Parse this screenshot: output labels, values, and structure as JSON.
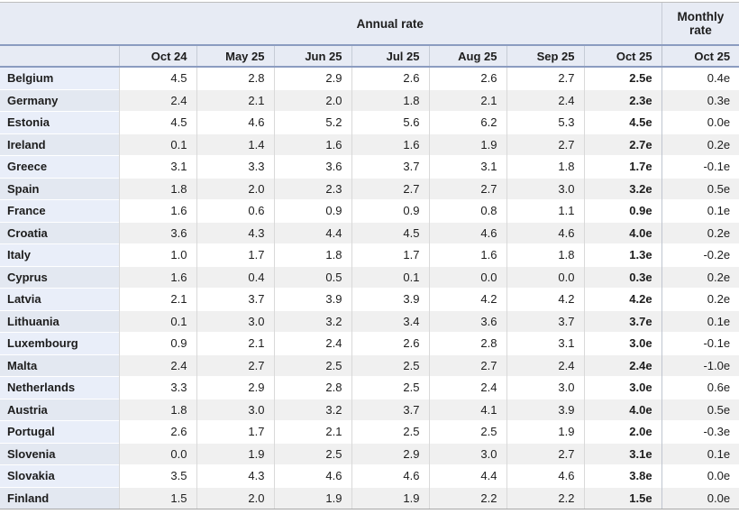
{
  "colors": {
    "header_bg": "#e7ebf4",
    "header_rule_blue": "#8b9cc0",
    "top_border_gray": "#bdbdbd",
    "bottom_border_gray": "#a6a6a6",
    "row_even_bg": "#f0f0f0",
    "row_odd_bg": "#ffffff",
    "country_col_odd_bg": "#e9eef9",
    "country_col_even_bg": "#e3e8f1",
    "grid_line": "#d9d9d9",
    "text": "#1d1d1d"
  },
  "chart_data": {
    "type": "table",
    "annual_group_label": "Annual rate",
    "monthly_group_label": "Monthly rate",
    "annual_columns": [
      "Oct 24",
      "May 25",
      "Jun 25",
      "Jul 25",
      "Aug 25",
      "Sep 25",
      "Oct 25"
    ],
    "monthly_column": "Oct 25",
    "estimate_flag_note": "values suffixed with e are estimates (shown bold in Oct 25 annual column)",
    "rows": [
      {
        "country": "Belgium",
        "annual": [
          "4.5",
          "2.8",
          "2.9",
          "2.6",
          "2.6",
          "2.7",
          "2.5e"
        ],
        "monthly": "0.4e"
      },
      {
        "country": "Germany",
        "annual": [
          "2.4",
          "2.1",
          "2.0",
          "1.8",
          "2.1",
          "2.4",
          "2.3e"
        ],
        "monthly": "0.3e"
      },
      {
        "country": "Estonia",
        "annual": [
          "4.5",
          "4.6",
          "5.2",
          "5.6",
          "6.2",
          "5.3",
          "4.5e"
        ],
        "monthly": "0.0e"
      },
      {
        "country": "Ireland",
        "annual": [
          "0.1",
          "1.4",
          "1.6",
          "1.6",
          "1.9",
          "2.7",
          "2.7e"
        ],
        "monthly": "0.2e"
      },
      {
        "country": "Greece",
        "annual": [
          "3.1",
          "3.3",
          "3.6",
          "3.7",
          "3.1",
          "1.8",
          "1.7e"
        ],
        "monthly": "-0.1e"
      },
      {
        "country": "Spain",
        "annual": [
          "1.8",
          "2.0",
          "2.3",
          "2.7",
          "2.7",
          "3.0",
          "3.2e"
        ],
        "monthly": "0.5e"
      },
      {
        "country": "France",
        "annual": [
          "1.6",
          "0.6",
          "0.9",
          "0.9",
          "0.8",
          "1.1",
          "0.9e"
        ],
        "monthly": "0.1e"
      },
      {
        "country": "Croatia",
        "annual": [
          "3.6",
          "4.3",
          "4.4",
          "4.5",
          "4.6",
          "4.6",
          "4.0e"
        ],
        "monthly": "0.2e"
      },
      {
        "country": "Italy",
        "annual": [
          "1.0",
          "1.7",
          "1.8",
          "1.7",
          "1.6",
          "1.8",
          "1.3e"
        ],
        "monthly": "-0.2e"
      },
      {
        "country": "Cyprus",
        "annual": [
          "1.6",
          "0.4",
          "0.5",
          "0.1",
          "0.0",
          "0.0",
          "0.3e"
        ],
        "monthly": "0.2e"
      },
      {
        "country": "Latvia",
        "annual": [
          "2.1",
          "3.7",
          "3.9",
          "3.9",
          "4.2",
          "4.2",
          "4.2e"
        ],
        "monthly": "0.2e"
      },
      {
        "country": "Lithuania",
        "annual": [
          "0.1",
          "3.0",
          "3.2",
          "3.4",
          "3.6",
          "3.7",
          "3.7e"
        ],
        "monthly": "0.1e"
      },
      {
        "country": "Luxembourg",
        "annual": [
          "0.9",
          "2.1",
          "2.4",
          "2.6",
          "2.8",
          "3.1",
          "3.0e"
        ],
        "monthly": "-0.1e"
      },
      {
        "country": "Malta",
        "annual": [
          "2.4",
          "2.7",
          "2.5",
          "2.5",
          "2.7",
          "2.4",
          "2.4e"
        ],
        "monthly": "-1.0e"
      },
      {
        "country": "Netherlands",
        "annual": [
          "3.3",
          "2.9",
          "2.8",
          "2.5",
          "2.4",
          "3.0",
          "3.0e"
        ],
        "monthly": "0.6e"
      },
      {
        "country": "Austria",
        "annual": [
          "1.8",
          "3.0",
          "3.2",
          "3.7",
          "4.1",
          "3.9",
          "4.0e"
        ],
        "monthly": "0.5e"
      },
      {
        "country": "Portugal",
        "annual": [
          "2.6",
          "1.7",
          "2.1",
          "2.5",
          "2.5",
          "1.9",
          "2.0e"
        ],
        "monthly": "-0.3e"
      },
      {
        "country": "Slovenia",
        "annual": [
          "0.0",
          "1.9",
          "2.5",
          "2.9",
          "3.0",
          "2.7",
          "3.1e"
        ],
        "monthly": "0.1e"
      },
      {
        "country": "Slovakia",
        "annual": [
          "3.5",
          "4.3",
          "4.6",
          "4.6",
          "4.4",
          "4.6",
          "3.8e"
        ],
        "monthly": "0.0e"
      },
      {
        "country": "Finland",
        "annual": [
          "1.5",
          "2.0",
          "1.9",
          "1.9",
          "2.2",
          "2.2",
          "1.5e"
        ],
        "monthly": "0.0e"
      }
    ]
  }
}
